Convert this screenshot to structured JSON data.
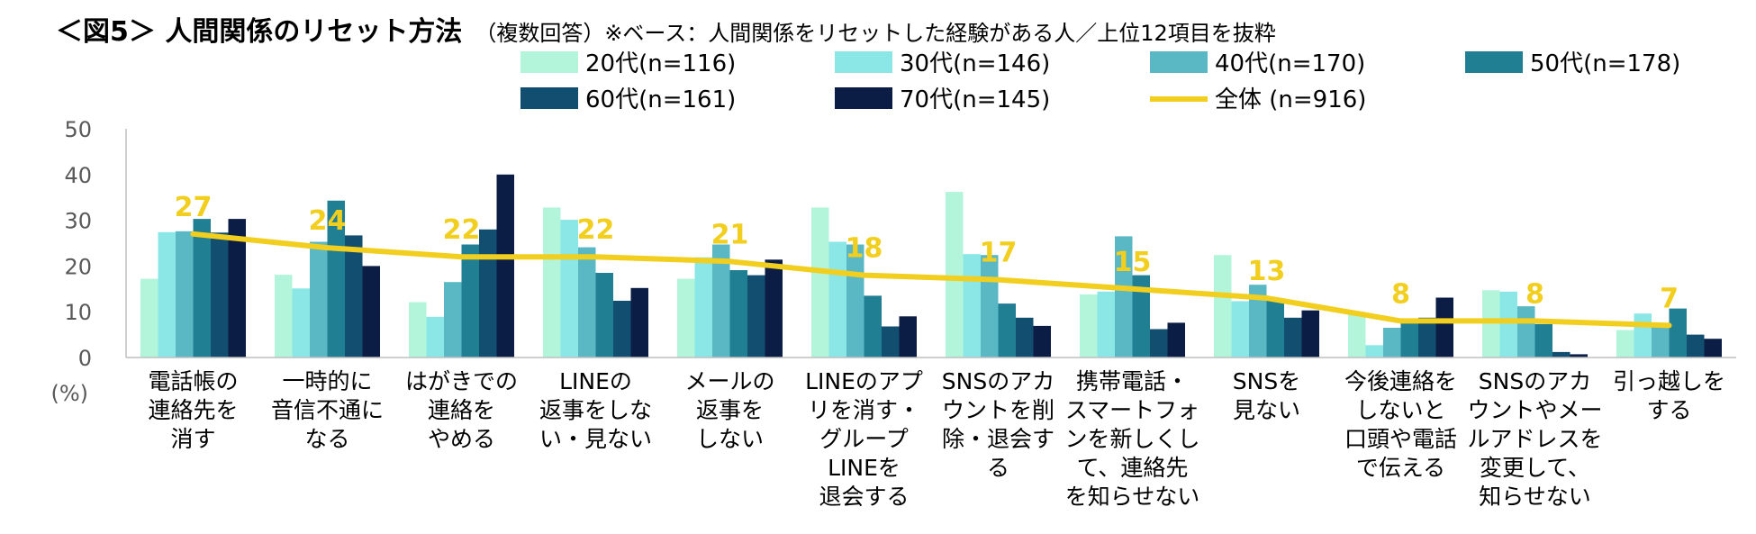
{
  "title": {
    "main": "＜図5＞ 人間関係のリセット方法",
    "sub": "（複数回答）※ベース：人間関係をリセットした経験がある人／上位12項目を抜粋"
  },
  "colors": {
    "age20": "#b3f5da",
    "age30": "#8be6e6",
    "age40": "#5ab8c4",
    "age50": "#217f94",
    "age60": "#124e70",
    "age70": "#0c1d45",
    "total": "#f2cf1f",
    "axis": "#bfbfbf",
    "tick_text": "#595959"
  },
  "chart_data": {
    "type": "bar",
    "title": "＜図5＞ 人間関係のリセット方法",
    "ylabel": "(%)",
    "ylim": [
      0,
      50
    ],
    "yticks": [
      "0",
      "10",
      "20",
      "30",
      "40",
      "50"
    ],
    "categories": [
      [
        "電話帳の",
        "連絡先を",
        "消す"
      ],
      [
        "一時的に",
        "音信不通に",
        "なる"
      ],
      [
        "はがきでの",
        "連絡を",
        "やめる"
      ],
      [
        "LINEの",
        "返事をしな",
        "い・見ない"
      ],
      [
        "メールの",
        "返事を",
        "しない"
      ],
      [
        "LINEのアプ",
        "リを消す・",
        "グループ",
        "LINEを",
        "退会する"
      ],
      [
        "SNSのアカ",
        "ウントを削",
        "除・退会す",
        "る"
      ],
      [
        "携帯電話・",
        "スマートフォ",
        "ンを新しくし",
        "て、連絡先",
        "を知らせない"
      ],
      [
        "SNSを",
        "見ない"
      ],
      [
        "今後連絡を",
        "しないと",
        "口頭や電話",
        "で伝える"
      ],
      [
        "SNSのアカ",
        "ウントやメー",
        "ルアドレスを",
        "変更して、",
        "知らせない"
      ],
      [
        "引っ越しを",
        "する"
      ]
    ],
    "series": [
      {
        "name": "20代(n=116)",
        "color_key": "age20",
        "values": [
          17.2,
          18.1,
          12.1,
          32.8,
          17.2,
          32.8,
          36.2,
          13.8,
          22.4,
          9.5,
          14.7,
          6.0
        ]
      },
      {
        "name": "30代(n=146)",
        "color_key": "age30",
        "values": [
          27.4,
          15.1,
          8.9,
          30.1,
          21.9,
          25.3,
          22.6,
          14.4,
          12.3,
          2.7,
          14.4,
          9.6
        ]
      },
      {
        "name": "40代(n=170)",
        "color_key": "age40",
        "values": [
          27.6,
          25.3,
          16.5,
          24.1,
          24.7,
          24.7,
          22.4,
          26.5,
          15.9,
          6.5,
          11.2,
          7.1
        ]
      },
      {
        "name": "50代(n=178)",
        "color_key": "age50",
        "values": [
          30.3,
          34.3,
          24.7,
          18.5,
          19.1,
          13.5,
          11.8,
          18.0,
          12.4,
          8.4,
          7.3,
          10.7
        ]
      },
      {
        "name": "60代(n=161)",
        "color_key": "age60",
        "values": [
          27.3,
          26.7,
          28.0,
          12.4,
          18.0,
          6.8,
          8.7,
          6.2,
          8.7,
          8.7,
          1.2,
          5.0
        ]
      },
      {
        "name": "70代(n=145)",
        "color_key": "age70",
        "values": [
          30.3,
          20.0,
          40.0,
          15.2,
          21.4,
          9.0,
          6.9,
          7.6,
          10.3,
          13.1,
          0.7,
          4.1
        ]
      }
    ],
    "line": {
      "name": "全体 (n=916)",
      "values": [
        27,
        24,
        22,
        22,
        21,
        18,
        17,
        15,
        13,
        8,
        8,
        7
      ],
      "labels": [
        "27",
        "24",
        "22",
        "22",
        "21",
        "18",
        "17",
        "15",
        "13",
        "8",
        "8",
        "7"
      ]
    },
    "legend_position": "top-right"
  }
}
